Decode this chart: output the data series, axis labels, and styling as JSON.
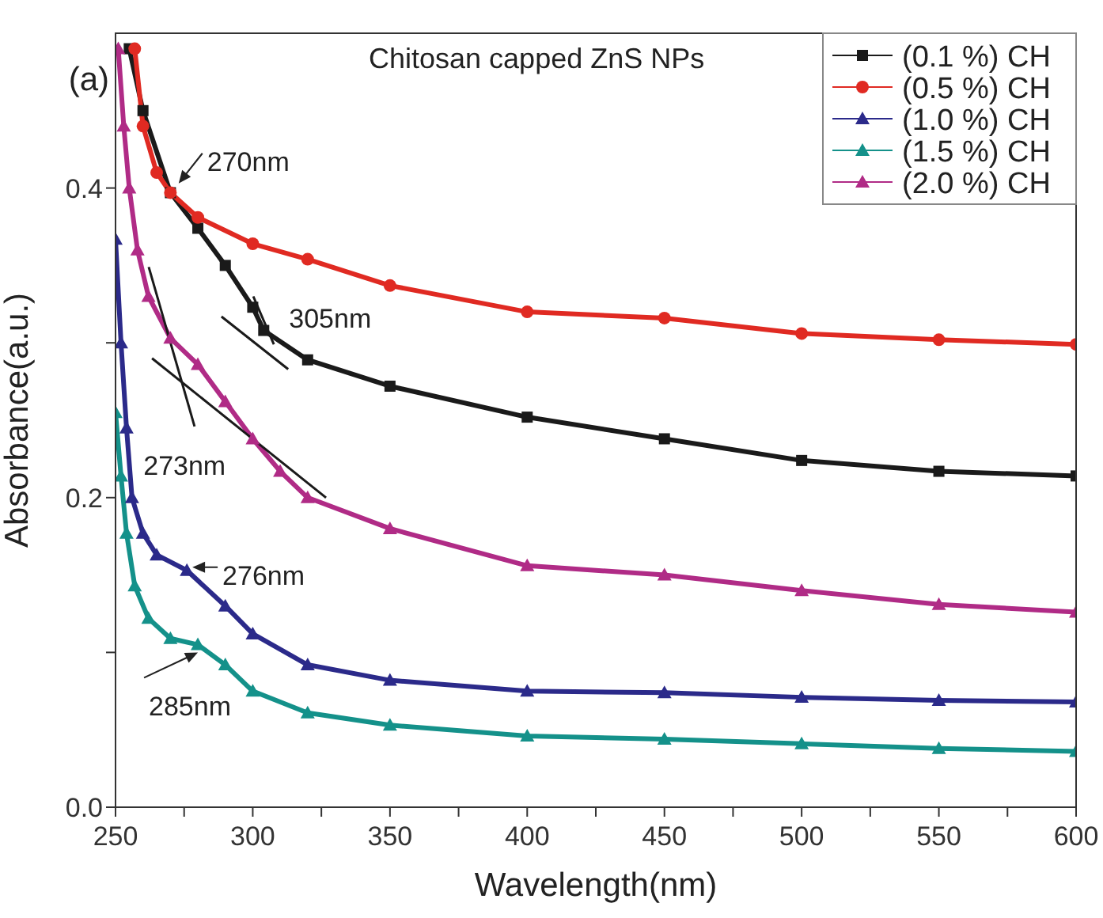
{
  "chart_data": {
    "type": "line",
    "title": "Chitosan capped ZnS NPs",
    "xlabel": "Wavelength(nm)",
    "ylabel": "Absorbance(a.u.)",
    "xlim": [
      250,
      600
    ],
    "ylim": [
      0,
      0.5
    ],
    "xticks": [
      250,
      {
        "value": 275,
        "label": null
      },
      300,
      {
        "value": 325,
        "label": null
      },
      350,
      {
        "value": 375,
        "label": null
      },
      400,
      {
        "value": 425,
        "label": null
      },
      450,
      {
        "value": 475,
        "label": null
      },
      500,
      {
        "value": 525,
        "label": null
      },
      550,
      {
        "value": 575,
        "label": null
      },
      600
    ],
    "yticks": [
      {
        "value": 0,
        "label": "0.0"
      },
      {
        "value": 0.1,
        "label": null
      },
      0.2,
      {
        "value": 0.3,
        "label": null
      },
      0.4
    ],
    "legend": "top right",
    "grid": false,
    "line_style": "solid",
    "annotations": [
      "(a)",
      {
        "text": "270nm",
        "x": 273,
        "y": 0.403
      },
      {
        "text": "305nm",
        "x": 304,
        "y": 0.308
      },
      {
        "text": "273nm",
        "x": 274,
        "y": 0.268
      },
      {
        "text": "276nm",
        "x": 278,
        "y": 0.155
      },
      {
        "text": "285nm",
        "x": 280,
        "y": 0.1
      }
    ],
    "series": [
      {
        "name": "(0.1 %) CH",
        "color": "#1a1a1a",
        "marker": "square",
        "x": [
          255,
          260,
          270,
          280,
          290,
          300,
          304,
          320,
          350,
          400,
          450,
          500,
          550,
          600
        ],
        "values": [
          0.49,
          0.45,
          0.397,
          0.374,
          0.35,
          0.323,
          0.308,
          0.289,
          0.272,
          0.252,
          0.238,
          0.224,
          0.217,
          0.214
        ]
      },
      {
        "name": "(0.5 %) CH",
        "color": "#e02a22",
        "marker": "circle",
        "x": [
          257,
          260,
          265,
          270,
          280,
          300,
          320,
          350,
          400,
          450,
          500,
          550,
          600
        ],
        "values": [
          0.49,
          0.44,
          0.41,
          0.397,
          0.381,
          0.364,
          0.354,
          0.337,
          0.32,
          0.316,
          0.306,
          0.302,
          0.299
        ]
      },
      {
        "name": "(1.0 %) CH",
        "color": "#2b2a8a",
        "marker": "triangle",
        "x": [
          250,
          252,
          254,
          256,
          260,
          265,
          276,
          290,
          300,
          320,
          350,
          400,
          450,
          500,
          550,
          600
        ],
        "values": [
          0.367,
          0.3,
          0.245,
          0.2,
          0.177,
          0.163,
          0.153,
          0.13,
          0.112,
          0.092,
          0.082,
          0.075,
          0.074,
          0.071,
          0.069,
          0.068
        ]
      },
      {
        "name": "(1.5 %) CH",
        "color": "#14918a",
        "marker": "triangle",
        "x": [
          250,
          252,
          254,
          257,
          262,
          270,
          280,
          290,
          300,
          320,
          350,
          400,
          450,
          500,
          550,
          600
        ],
        "values": [
          0.255,
          0.214,
          0.177,
          0.143,
          0.122,
          0.109,
          0.105,
          0.092,
          0.075,
          0.061,
          0.053,
          0.046,
          0.044,
          0.041,
          0.038,
          0.036
        ]
      },
      {
        "name": "(2.0 %) CH",
        "color": "#b02b86",
        "marker": "triangle",
        "x": [
          251,
          253,
          255,
          258,
          262,
          270,
          280,
          290,
          300,
          310,
          320,
          350,
          400,
          450,
          500,
          550,
          600
        ],
        "values": [
          0.49,
          0.44,
          0.4,
          0.36,
          0.33,
          0.303,
          0.286,
          0.262,
          0.238,
          0.217,
          0.2,
          0.18,
          0.156,
          0.15,
          0.14,
          0.131,
          0.126
        ]
      },
      {
        "type": "line",
        "color": "#1a1a1a",
        "marker": "none",
        "x": [
          288.6,
          312.9
        ],
        "values": [
          0.317,
          0.283
        ]
      },
      {
        "type": "line",
        "color": "#1a1a1a",
        "marker": "none",
        "x": [
          300.2,
          307.7
        ],
        "values": [
          0.33,
          0.299
        ]
      },
      {
        "type": "line",
        "color": "#1a1a1a",
        "marker": "none",
        "x": [
          262.1,
          278.8
        ],
        "values": [
          0.349,
          0.246
        ]
      },
      {
        "type": "line",
        "color": "#1a1a1a",
        "marker": "none",
        "x": [
          263.3,
          326.7
        ],
        "values": [
          0.29,
          0.2
        ]
      }
    ]
  }
}
